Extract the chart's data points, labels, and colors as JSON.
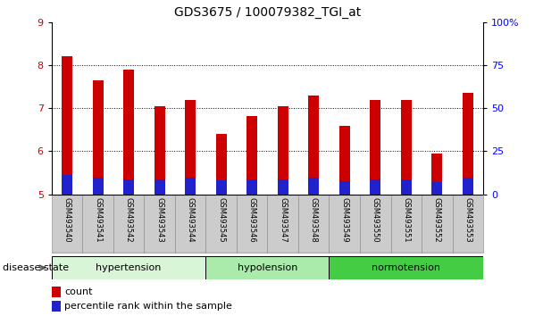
{
  "title": "GDS3675 / 100079382_TGI_at",
  "samples": [
    "GSM493540",
    "GSM493541",
    "GSM493542",
    "GSM493543",
    "GSM493544",
    "GSM493545",
    "GSM493546",
    "GSM493547",
    "GSM493548",
    "GSM493549",
    "GSM493550",
    "GSM493551",
    "GSM493552",
    "GSM493553"
  ],
  "count_values": [
    8.2,
    7.65,
    7.9,
    7.05,
    7.2,
    6.4,
    6.82,
    7.05,
    7.3,
    6.6,
    7.2,
    7.2,
    5.95,
    7.35
  ],
  "percentile_values": [
    5.45,
    5.38,
    5.35,
    5.35,
    5.38,
    5.32,
    5.35,
    5.35,
    5.38,
    5.3,
    5.35,
    5.35,
    5.28,
    5.38
  ],
  "bar_bottom": 5.0,
  "ylim": [
    5.0,
    9.0
  ],
  "y2lim": [
    0,
    100
  ],
  "yticks": [
    5,
    6,
    7,
    8,
    9
  ],
  "y2ticks": [
    0,
    25,
    50,
    75,
    100
  ],
  "y2ticklabels": [
    "0",
    "25",
    "50",
    "75",
    "100%"
  ],
  "count_color": "#cc0000",
  "percentile_color": "#2222cc",
  "bar_width": 0.35,
  "groups": [
    {
      "label": "hypertension",
      "start": 0,
      "end": 5,
      "color": "#d8f5d8"
    },
    {
      "label": "hypolension",
      "start": 5,
      "end": 9,
      "color": "#aaeaaa"
    },
    {
      "label": "normotension",
      "start": 9,
      "end": 14,
      "color": "#44cc44"
    }
  ],
  "tick_label_bg": "#cccccc",
  "legend_count": "count",
  "legend_percentile": "percentile rank within the sample"
}
